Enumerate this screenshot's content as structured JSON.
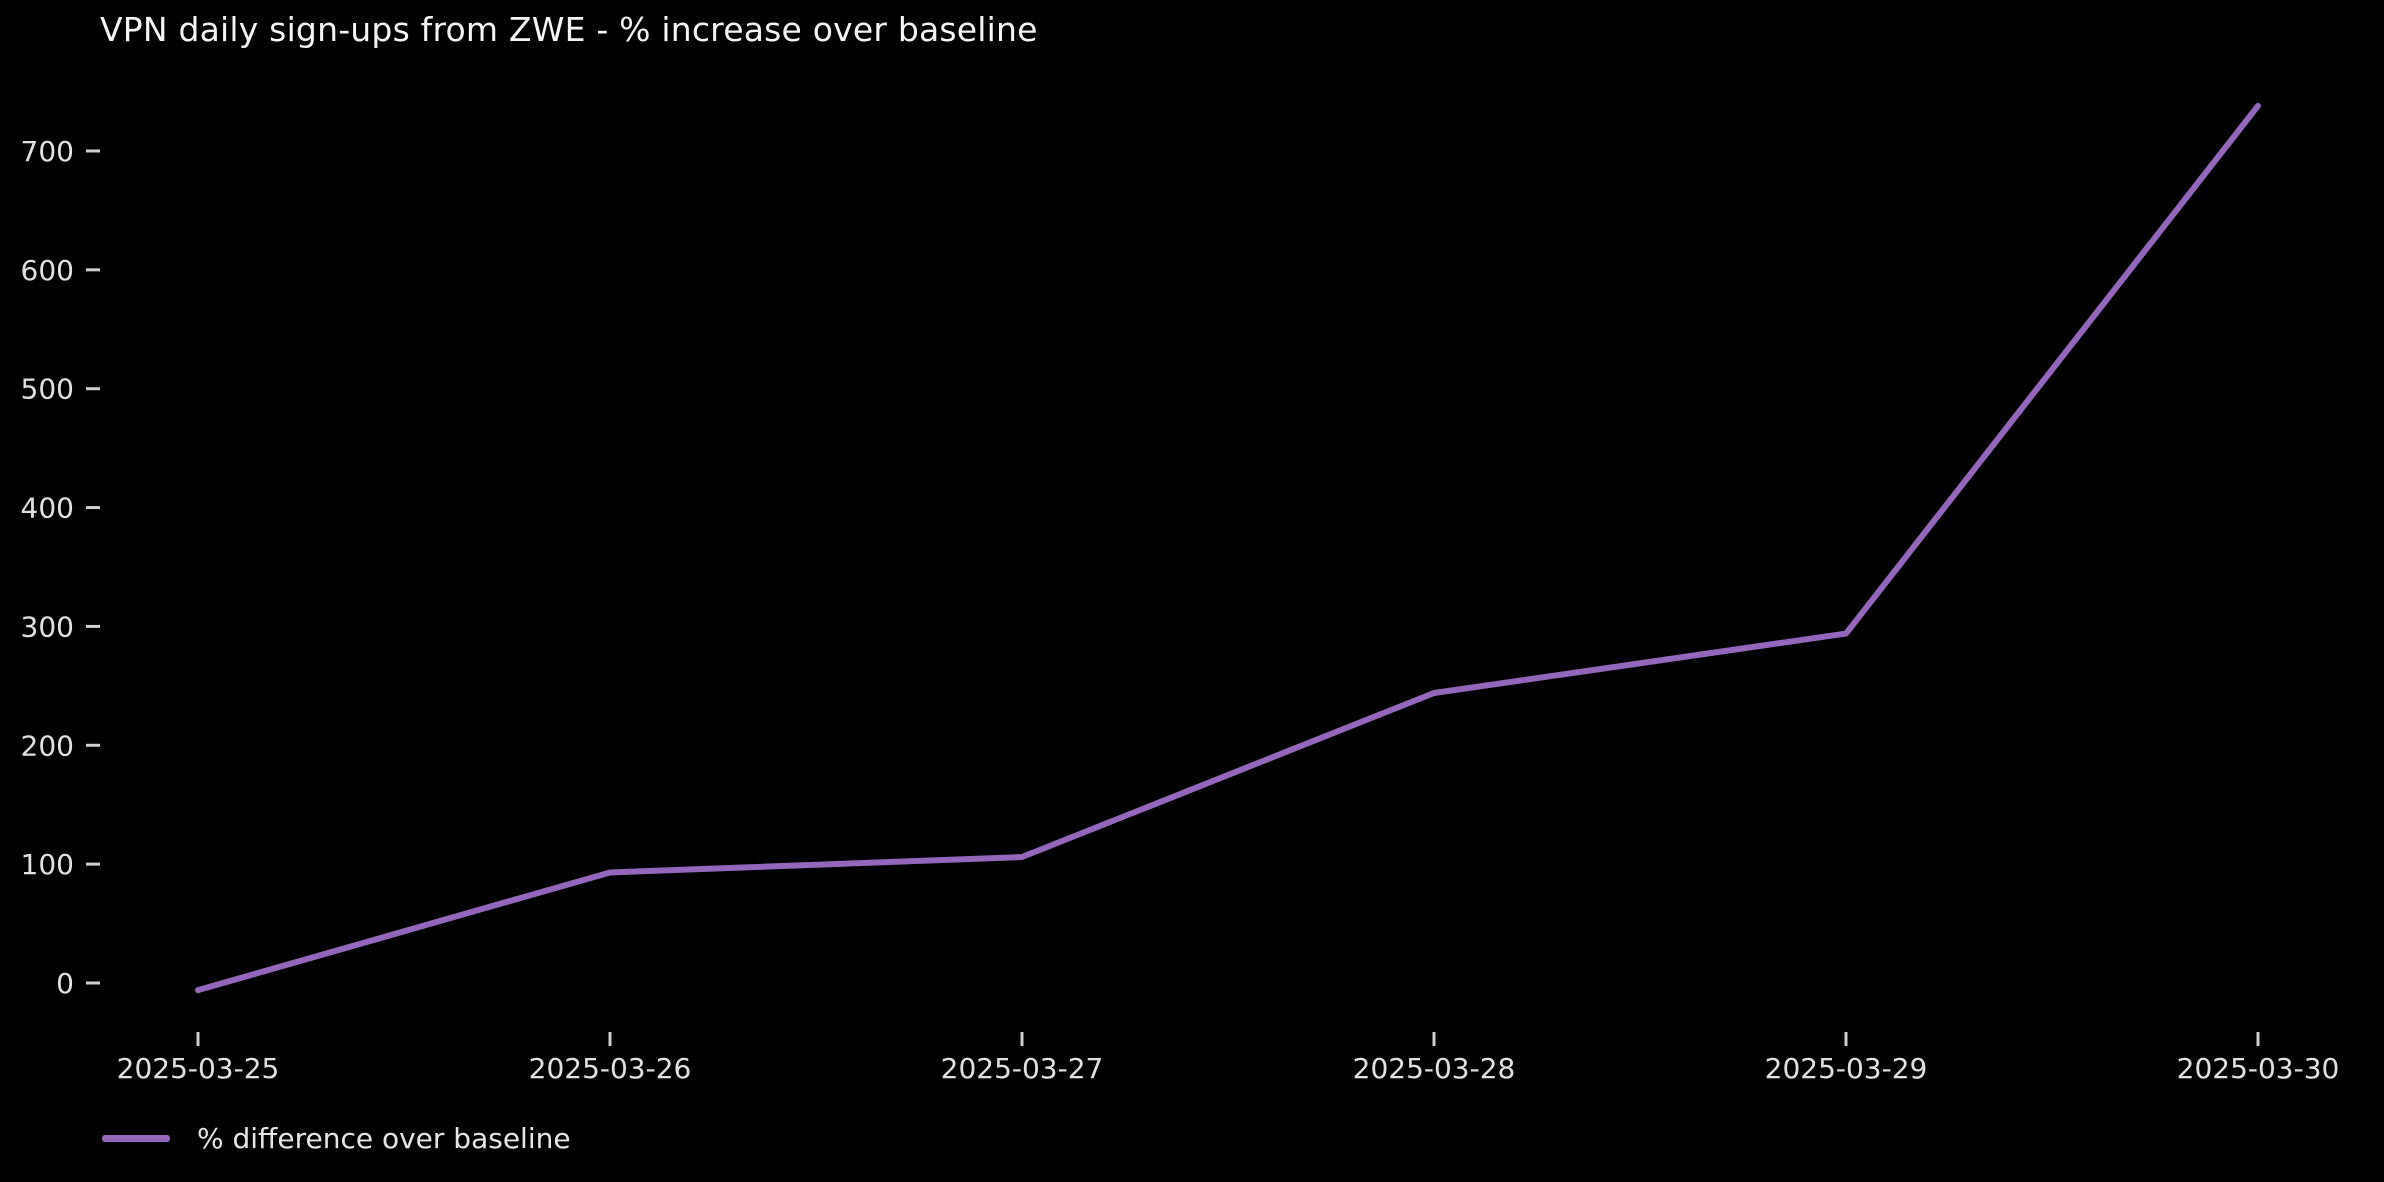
{
  "chart_data": {
    "type": "line",
    "title": "VPN daily sign-ups from ZWE - % increase over baseline",
    "categories": [
      "2025-03-25",
      "2025-03-26",
      "2025-03-27",
      "2025-03-28",
      "2025-03-29",
      "2025-03-30"
    ],
    "series": [
      {
        "name": "% difference over baseline",
        "values": [
          -6,
          93,
          106,
          244,
          294,
          738
        ]
      }
    ],
    "xlabel": "",
    "ylabel": "",
    "yticks": [
      0,
      100,
      200,
      300,
      400,
      500,
      600,
      700
    ],
    "ylim": [
      -45,
      775
    ],
    "grid": false,
    "legend_position": "lower-left",
    "colors": {
      "background": "#000000",
      "line": "#9467bd",
      "title_text": "#f5f5f5",
      "tick_text": "#e1e1e1",
      "tick_mark": "#d0d0d0",
      "legend_text": "#e6e6e6"
    }
  }
}
